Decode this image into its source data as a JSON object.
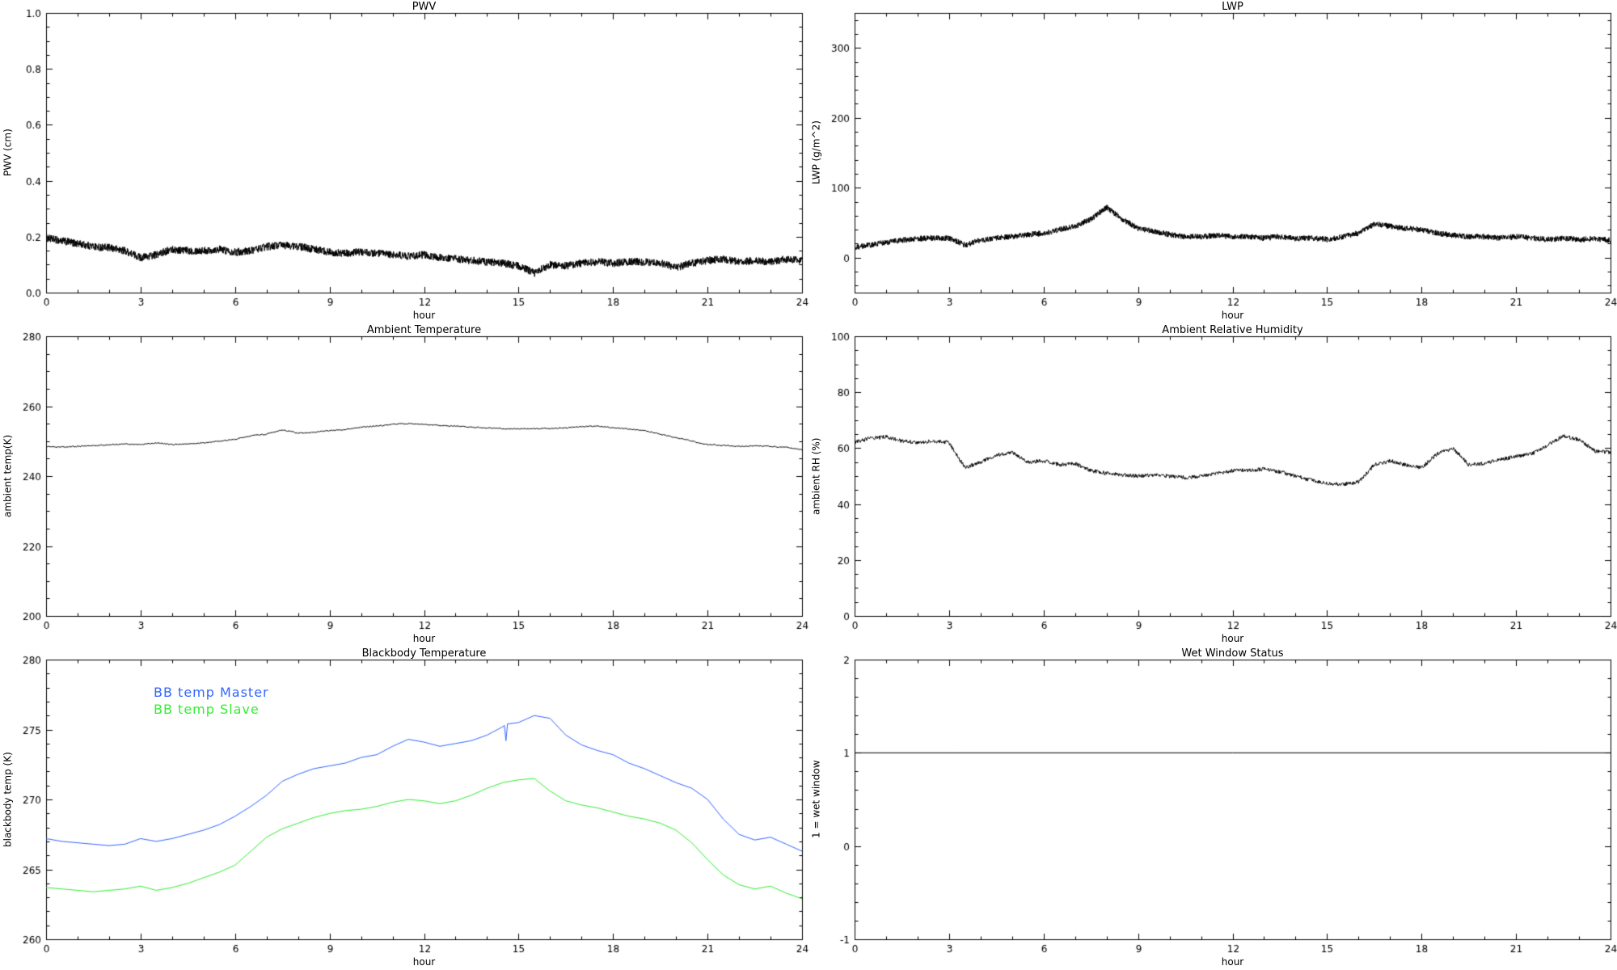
{
  "page": {
    "background": "#ffffff",
    "text_color": "#000000"
  },
  "chart_data": [
    {
      "type": "line",
      "title": "PWV",
      "xlabel": "hour",
      "ylabel": "PWV (cm)",
      "xlim": [
        0,
        24
      ],
      "ylim": [
        0.0,
        1.0
      ],
      "xticks": [
        0,
        3,
        6,
        9,
        12,
        15,
        18,
        21,
        24
      ],
      "xtick_labels": [
        "0",
        "3",
        "6",
        "9",
        "12",
        "15",
        "18",
        "21",
        "24"
      ],
      "yticks": [
        0.0,
        0.2,
        0.4,
        0.6,
        0.8,
        1.0
      ],
      "ytick_labels": [
        "0.0",
        "0.2",
        "0.4",
        "0.6",
        "0.8",
        "1.0"
      ],
      "xminor": 3,
      "yminor": 4,
      "grid": false,
      "legend_position": "none",
      "series": [
        {
          "name": "PWV",
          "color": "#000000",
          "noise": 0.014,
          "samples_per_hour": 120,
          "x_start": 0,
          "x_step": 0.5,
          "y": [
            0.195,
            0.185,
            0.175,
            0.165,
            0.16,
            0.15,
            0.125,
            0.135,
            0.155,
            0.15,
            0.15,
            0.155,
            0.145,
            0.15,
            0.165,
            0.17,
            0.165,
            0.155,
            0.145,
            0.14,
            0.145,
            0.14,
            0.135,
            0.13,
            0.135,
            0.125,
            0.12,
            0.115,
            0.11,
            0.105,
            0.095,
            0.07,
            0.1,
            0.095,
            0.105,
            0.11,
            0.105,
            0.11,
            0.11,
            0.105,
            0.09,
            0.105,
            0.115,
            0.12,
            0.11,
            0.115,
            0.11,
            0.12,
            0.115
          ]
        }
      ]
    },
    {
      "type": "line",
      "title": "LWP",
      "xlabel": "hour",
      "ylabel": "LWP (g/m^2)",
      "xlim": [
        0,
        24
      ],
      "ylim": [
        -50,
        350
      ],
      "xticks": [
        0,
        3,
        6,
        9,
        12,
        15,
        18,
        21,
        24
      ],
      "xtick_labels": [
        "0",
        "3",
        "6",
        "9",
        "12",
        "15",
        "18",
        "21",
        "24"
      ],
      "yticks": [
        0,
        100,
        200,
        300
      ],
      "ytick_labels": [
        "0",
        "100",
        "200",
        "300"
      ],
      "xminor": 3,
      "yminor": 5,
      "grid": false,
      "legend_position": "none",
      "series": [
        {
          "name": "LWP",
          "color": "#000000",
          "noise": 4,
          "samples_per_hour": 120,
          "x_start": 0,
          "x_step": 0.5,
          "y": [
            15,
            18,
            22,
            25,
            27,
            28,
            28,
            18,
            25,
            28,
            30,
            33,
            35,
            40,
            45,
            55,
            72,
            55,
            42,
            38,
            33,
            30,
            30,
            32,
            30,
            30,
            28,
            30,
            27,
            28,
            26,
            30,
            35,
            48,
            45,
            42,
            40,
            35,
            32,
            30,
            30,
            28,
            30,
            28,
            26,
            28,
            26,
            27,
            25
          ]
        }
      ]
    },
    {
      "type": "line",
      "title": "Ambient Temperature",
      "xlabel": "hour",
      "ylabel": "ambient temp(K)",
      "xlim": [
        0,
        24
      ],
      "ylim": [
        200,
        280
      ],
      "xticks": [
        0,
        3,
        6,
        9,
        12,
        15,
        18,
        21,
        24
      ],
      "xtick_labels": [
        "0",
        "3",
        "6",
        "9",
        "12",
        "15",
        "18",
        "21",
        "24"
      ],
      "yticks": [
        200,
        220,
        240,
        260,
        280
      ],
      "ytick_labels": [
        "200",
        "220",
        "240",
        "260",
        "280"
      ],
      "xminor": 3,
      "yminor": 4,
      "grid": false,
      "legend_position": "none",
      "series": [
        {
          "name": "ambient temperature",
          "color": "#000000",
          "noise": 0.15,
          "samples_per_hour": 30,
          "x_start": 0,
          "x_step": 0.5,
          "y": [
            248.5,
            248.3,
            248.5,
            248.7,
            249.0,
            249.2,
            249.0,
            249.5,
            249.0,
            249.2,
            249.5,
            250.0,
            250.5,
            251.5,
            252.0,
            253.2,
            252.3,
            252.5,
            253.0,
            253.3,
            254.0,
            254.3,
            254.8,
            255.0,
            254.8,
            254.5,
            254.3,
            254.0,
            253.8,
            253.6,
            253.5,
            253.6,
            253.6,
            253.8,
            254.2,
            254.3,
            253.8,
            253.5,
            253.0,
            252.0,
            251.0,
            250.0,
            249.0,
            248.8,
            248.5,
            248.7,
            248.5,
            248.2,
            247.5
          ]
        }
      ]
    },
    {
      "type": "line",
      "title": "Ambient Relative Humidity",
      "xlabel": "hour",
      "ylabel": "ambient RH (%)",
      "xlim": [
        0,
        24
      ],
      "ylim": [
        0,
        100
      ],
      "xticks": [
        0,
        3,
        6,
        9,
        12,
        15,
        18,
        21,
        24
      ],
      "xtick_labels": [
        "0",
        "3",
        "6",
        "9",
        "12",
        "15",
        "18",
        "21",
        "24"
      ],
      "yticks": [
        0,
        20,
        40,
        60,
        80,
        100
      ],
      "ytick_labels": [
        "0",
        "20",
        "40",
        "60",
        "80",
        "100"
      ],
      "xminor": 3,
      "yminor": 4,
      "grid": false,
      "legend_position": "none",
      "series": [
        {
          "name": "ambient RH",
          "color": "#000000",
          "noise": 0.7,
          "samples_per_hour": 60,
          "x_start": 0,
          "x_step": 0.5,
          "y": [
            62,
            63.5,
            64,
            62.5,
            62,
            62.5,
            62,
            53,
            55,
            57.5,
            58.5,
            55,
            55.5,
            54,
            54.5,
            52,
            51,
            50.5,
            50,
            50.5,
            50,
            49.5,
            50,
            51,
            52,
            52,
            52.5,
            51.5,
            50,
            48.5,
            47.5,
            47,
            48,
            54,
            55.5,
            54,
            53,
            58,
            60,
            54,
            54.5,
            56,
            57,
            58,
            61,
            64.5,
            63,
            59,
            58.5
          ]
        }
      ]
    },
    {
      "type": "line",
      "title": "Blackbody Temperature",
      "xlabel": "hour",
      "ylabel": "blackbody temp (K)",
      "xlim": [
        0,
        24
      ],
      "ylim": [
        260,
        280
      ],
      "xticks": [
        0,
        3,
        6,
        9,
        12,
        15,
        18,
        21,
        24
      ],
      "xtick_labels": [
        "0",
        "3",
        "6",
        "9",
        "12",
        "15",
        "18",
        "21",
        "24"
      ],
      "yticks": [
        260,
        265,
        270,
        275,
        280
      ],
      "ytick_labels": [
        "260",
        "265",
        "270",
        "275",
        "280"
      ],
      "xminor": 3,
      "yminor": 5,
      "grid": false,
      "legend_position": "top-left",
      "legend": {
        "entries": [
          {
            "label": "BB temp Master",
            "color": "#3366ff"
          },
          {
            "label": "BB temp Slave",
            "color": "#33ee33"
          }
        ]
      },
      "series": [
        {
          "name": "BB temp Master",
          "color": "#3366ff",
          "noise": 0,
          "x": [
            0,
            0.5,
            1,
            1.5,
            2,
            2.5,
            3,
            3.5,
            4,
            4.5,
            5,
            5.5,
            6,
            6.5,
            7,
            7.5,
            8,
            8.5,
            9,
            9.5,
            10,
            10.5,
            11,
            11.5,
            12,
            12.5,
            13,
            13.5,
            14,
            14.5,
            14.55,
            14.6,
            14.65,
            15,
            15.5,
            16,
            16.5,
            17,
            17.5,
            18,
            18.5,
            19,
            19.5,
            20,
            20.5,
            21,
            21.5,
            22,
            22.5,
            23,
            23.5,
            24
          ],
          "y": [
            267.2,
            267.0,
            266.9,
            266.8,
            266.7,
            266.8,
            267.2,
            267.0,
            267.2,
            267.5,
            267.8,
            268.2,
            268.8,
            269.5,
            270.3,
            271.3,
            271.8,
            272.2,
            272.4,
            272.6,
            273.0,
            273.2,
            273.8,
            274.3,
            274.1,
            273.8,
            274.0,
            274.2,
            274.6,
            275.2,
            275.3,
            274.2,
            275.4,
            275.5,
            276.0,
            275.8,
            274.6,
            273.9,
            273.5,
            273.2,
            272.6,
            272.2,
            271.7,
            271.2,
            270.8,
            270.0,
            268.6,
            267.5,
            267.1,
            267.3,
            266.8,
            266.3
          ]
        },
        {
          "name": "BB temp Slave",
          "color": "#33ee33",
          "noise": 0,
          "x_start": 0,
          "x_step": 0.5,
          "y": [
            263.7,
            263.6,
            263.5,
            263.4,
            263.5,
            263.6,
            263.8,
            263.5,
            263.7,
            264.0,
            264.4,
            264.8,
            265.3,
            266.3,
            267.3,
            267.9,
            268.3,
            268.7,
            269.0,
            269.2,
            269.3,
            269.5,
            269.8,
            270.0,
            269.9,
            269.7,
            269.9,
            270.3,
            270.8,
            271.2,
            271.4,
            271.5,
            270.6,
            269.9,
            269.6,
            269.4,
            269.1,
            268.8,
            268.6,
            268.3,
            267.8,
            266.9,
            265.7,
            264.6,
            263.9,
            263.6,
            263.8,
            263.3,
            262.9
          ]
        }
      ]
    },
    {
      "type": "line",
      "title": "Wet Window Status",
      "xlabel": "hour",
      "ylabel": "1 = wet window",
      "xlim": [
        0,
        24
      ],
      "ylim": [
        -1,
        2
      ],
      "xticks": [
        0,
        3,
        6,
        9,
        12,
        15,
        18,
        21,
        24
      ],
      "xtick_labels": [
        "0",
        "3",
        "6",
        "9",
        "12",
        "15",
        "18",
        "21",
        "24"
      ],
      "yticks": [
        -1,
        0,
        1,
        2
      ],
      "ytick_labels": [
        "-1",
        "0",
        "1",
        "2"
      ],
      "xminor": 3,
      "yminor": 5,
      "grid": false,
      "legend_position": "none",
      "series": [
        {
          "name": "wet window status",
          "color": "#000000",
          "noise": 0,
          "x": [
            0,
            24
          ],
          "y": [
            1,
            1
          ]
        }
      ]
    }
  ]
}
